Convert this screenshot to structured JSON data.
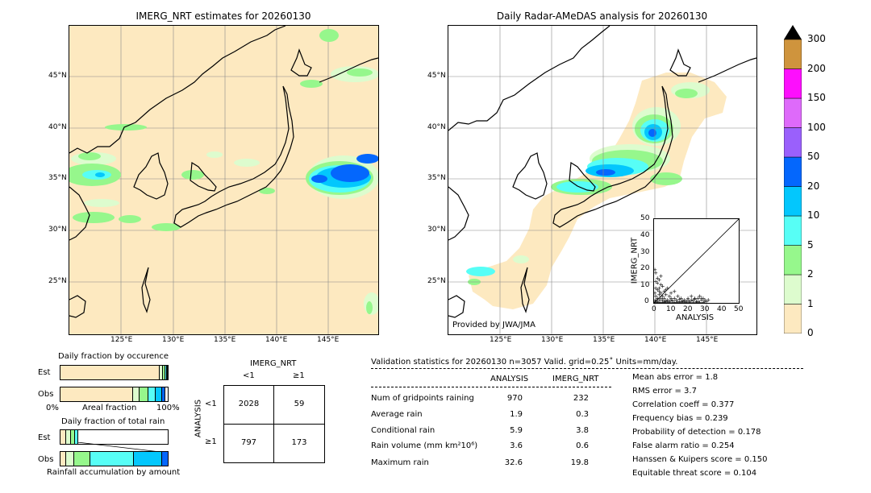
{
  "left_map": {
    "title": "IMERG_NRT estimates for 20260130",
    "lat_ticks": [
      "45°N",
      "40°N",
      "35°N",
      "30°N",
      "25°N"
    ],
    "lon_ticks": [
      "125°E",
      "130°E",
      "135°E",
      "140°E",
      "145°E"
    ]
  },
  "right_map": {
    "title": "Daily Radar-AMeDAS analysis for 20260130",
    "lat_ticks": [
      "45°N",
      "40°N",
      "35°N",
      "30°N",
      "25°N"
    ],
    "lon_ticks": [
      "125°E",
      "130°E",
      "135°E",
      "140°E",
      "145°E"
    ],
    "credit": "Provided by JWA/JMA"
  },
  "colorbar": {
    "levels": [
      "0",
      "1",
      "2",
      "5",
      "10",
      "20",
      "50",
      "100",
      "150",
      "200",
      "300"
    ],
    "colors": [
      "#fde9c0",
      "#ddfcce",
      "#96f78c",
      "#57fef6",
      "#03c7fd",
      "#0467fd",
      "#9a60fc",
      "#de6afa",
      "#fd0ffd",
      "#cf943d"
    ],
    "extend_color": "#000000"
  },
  "scatter": {
    "xlabel": "ANALYSIS",
    "ylabel": "IMERG_NRT",
    "ticks": [
      "0",
      "10",
      "20",
      "30",
      "40",
      "50"
    ],
    "points": [
      [
        0.5,
        1
      ],
      [
        1,
        2
      ],
      [
        2,
        1
      ],
      [
        1,
        4
      ],
      [
        0.5,
        6
      ],
      [
        1,
        9
      ],
      [
        2,
        12
      ],
      [
        3,
        14
      ],
      [
        1,
        18
      ],
      [
        0.5,
        20
      ],
      [
        2,
        8
      ],
      [
        3,
        5
      ],
      [
        4,
        3
      ],
      [
        5,
        2
      ],
      [
        6,
        1
      ],
      [
        7,
        0.5
      ],
      [
        8,
        2
      ],
      [
        9,
        1
      ],
      [
        10,
        3
      ],
      [
        11,
        1.5
      ],
      [
        12,
        0.5
      ],
      [
        13,
        2
      ],
      [
        14,
        1
      ],
      [
        15,
        2.5
      ],
      [
        16,
        1
      ],
      [
        17,
        0.5
      ],
      [
        18,
        2
      ],
      [
        19,
        1
      ],
      [
        20,
        3
      ],
      [
        21,
        1
      ],
      [
        22,
        2
      ],
      [
        23,
        0.5
      ],
      [
        24,
        2.5
      ],
      [
        25,
        1
      ],
      [
        26,
        3
      ],
      [
        27,
        4
      ],
      [
        28,
        2
      ],
      [
        29,
        3
      ],
      [
        30,
        1
      ],
      [
        32,
        2
      ],
      [
        2,
        3
      ],
      [
        3,
        2
      ],
      [
        4,
        6
      ],
      [
        5,
        4
      ],
      [
        6,
        3
      ],
      [
        7,
        5
      ],
      [
        8,
        1
      ],
      [
        9,
        4
      ],
      [
        10,
        2
      ],
      [
        12,
        3
      ],
      [
        14,
        4
      ],
      [
        16,
        3
      ],
      [
        18,
        1
      ],
      [
        20,
        2
      ],
      [
        22,
        4
      ],
      [
        24,
        3
      ],
      [
        26,
        1
      ],
      [
        28,
        3
      ],
      [
        30,
        2
      ],
      [
        3,
        9
      ],
      [
        4,
        11
      ],
      [
        6,
        7
      ],
      [
        8,
        9
      ],
      [
        10,
        6
      ],
      [
        12,
        7
      ],
      [
        5,
        10
      ],
      [
        7,
        8
      ],
      [
        1,
        0.5
      ],
      [
        2,
        0.5
      ],
      [
        3,
        0.5
      ],
      [
        4,
        0.5
      ],
      [
        5,
        0.5
      ],
      [
        6,
        0.5
      ],
      [
        7,
        1.5
      ],
      [
        9,
        0.5
      ],
      [
        11,
        0.5
      ],
      [
        13,
        0.5
      ],
      [
        15,
        0.5
      ],
      [
        17,
        1.5
      ],
      [
        19,
        0.5
      ],
      [
        21,
        0.5
      ],
      [
        23,
        1.5
      ],
      [
        25,
        0.5
      ],
      [
        27,
        0.5
      ],
      [
        29,
        0.5
      ],
      [
        31,
        1
      ],
      [
        2,
        15
      ],
      [
        1,
        13
      ],
      [
        3,
        7
      ],
      [
        4,
        16
      ]
    ]
  },
  "bars": {
    "occ_title": "Daily fraction by occurence",
    "rain_title": "Daily fraction of total rain",
    "est_label": "Est",
    "obs_label": "Obs",
    "axis_left": "0%",
    "axis_mid": "Areal fraction",
    "axis_right": "100%",
    "accum_label": "Rainfall accumulation by amount",
    "occ_est": [
      0.925,
      0.03,
      0.02,
      0.015,
      0.01
    ],
    "occ_obs": [
      0.68,
      0.06,
      0.08,
      0.07,
      0.06,
      0.03
    ],
    "colors": [
      "#fde9c0",
      "#ddfcce",
      "#96f78c",
      "#57fef6",
      "#03c7fd",
      "#0467fd"
    ]
  },
  "contingency": {
    "title": "IMERG_NRT",
    "col_lt": "<1",
    "col_ge": "≥1",
    "row_axis": "ANALYSIS",
    "row_lt": "<1",
    "row_ge": "≥1",
    "cells": [
      "2028",
      "59",
      "797",
      "173"
    ]
  },
  "stats": {
    "header": "Validation statistics for 20260130  n=3057 Valid. grid=0.25˚ Units=mm/day.",
    "col_analysis": "ANALYSIS",
    "col_imerg": "IMERG_NRT",
    "rows": [
      {
        "label": "Num of gridpoints raining",
        "analysis": "970",
        "imerg": "232"
      },
      {
        "label": "Average rain",
        "analysis": "1.9",
        "imerg": "0.3"
      },
      {
        "label": "Conditional rain",
        "analysis": "5.9",
        "imerg": "3.8"
      },
      {
        "label": "Rain volume (mm km²10⁶)",
        "analysis": "3.6",
        "imerg": "0.6"
      },
      {
        "label": "Maximum rain",
        "analysis": "32.6",
        "imerg": "19.8"
      }
    ],
    "scores": [
      "Mean abs error =    1.8",
      "RMS error =    3.7",
      "Correlation coeff =  0.377",
      "Frequency bias =  0.239",
      "Probability of detection =  0.178",
      "False alarm ratio =  0.254",
      "Hanssen & Kuipers score =  0.150",
      "Equitable threat score =  0.104"
    ]
  }
}
